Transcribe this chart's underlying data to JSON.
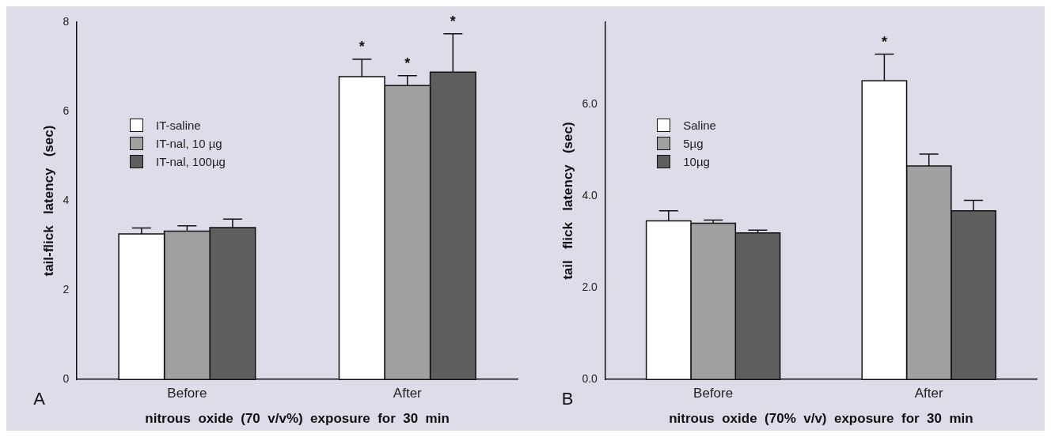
{
  "chart_data": [
    {
      "type": "bar",
      "ylabel": "tail-flick   latency   (sec)",
      "xlabel": "nitrous  oxide  (70  v/v%)  exposure  for  30  min",
      "annotations": [
        "A"
      ],
      "categories": [
        "Before",
        "After"
      ],
      "ylim": [
        0,
        8
      ],
      "yticks": [
        0,
        2,
        4,
        6,
        8
      ],
      "grid": false,
      "legend": "top left",
      "series": [
        {
          "name": "IT-saline",
          "color": "#ffffff",
          "values": [
            3.26,
            6.78
          ],
          "errors": [
            [
              3.26,
              3.39
            ],
            [
              6.78,
              7.17
            ]
          ],
          "value_labels": [
            null,
            "*"
          ]
        },
        {
          "name": "IT-nal, 10 µg",
          "color": "#a0a0a0",
          "values": [
            3.32,
            6.58
          ],
          "errors": [
            [
              3.32,
              3.44
            ],
            [
              6.58,
              6.8
            ]
          ],
          "value_labels": [
            null,
            "*"
          ]
        },
        {
          "name": "IT-nal, 100µg",
          "color": "#5e5e5e",
          "values": [
            3.4,
            6.88
          ],
          "errors": [
            [
              3.4,
              3.59
            ],
            [
              6.88,
              7.74
            ]
          ],
          "value_labels": [
            null,
            "*"
          ]
        }
      ]
    },
    {
      "type": "bar",
      "ylabel": "tail   flick   latency   (sec)",
      "xlabel": "nitrous  oxide  (70%  v/v)  exposure  for  30  min",
      "annotations": [
        "B"
      ],
      "categories": [
        "Before",
        "After"
      ],
      "ylim": [
        0,
        7.8
      ],
      "yticks": [
        {
          "value": 0,
          "label": "0.0"
        },
        {
          "value": 2,
          "label": "2.0"
        },
        {
          "value": 4,
          "label": "4.0"
        },
        {
          "value": 6,
          "label": "6.0"
        }
      ],
      "grid": false,
      "legend": "top left",
      "series": [
        {
          "name": "Saline",
          "color": "#ffffff",
          "values": [
            3.46,
            6.52
          ],
          "errors": [
            [
              3.46,
              3.68
            ],
            [
              6.52,
              7.1
            ]
          ],
          "value_labels": [
            null,
            "*"
          ]
        },
        {
          "name": "5µg",
          "color": "#a0a0a0",
          "values": [
            3.41,
            4.66
          ],
          "errors": [
            [
              3.41,
              3.48
            ],
            [
              4.66,
              4.92
            ]
          ]
        },
        {
          "name": "10µg",
          "color": "#5e5e5e",
          "values": [
            3.2,
            3.68
          ],
          "errors": [
            [
              3.2,
              3.26
            ],
            [
              3.68,
              3.91
            ]
          ]
        }
      ]
    }
  ]
}
